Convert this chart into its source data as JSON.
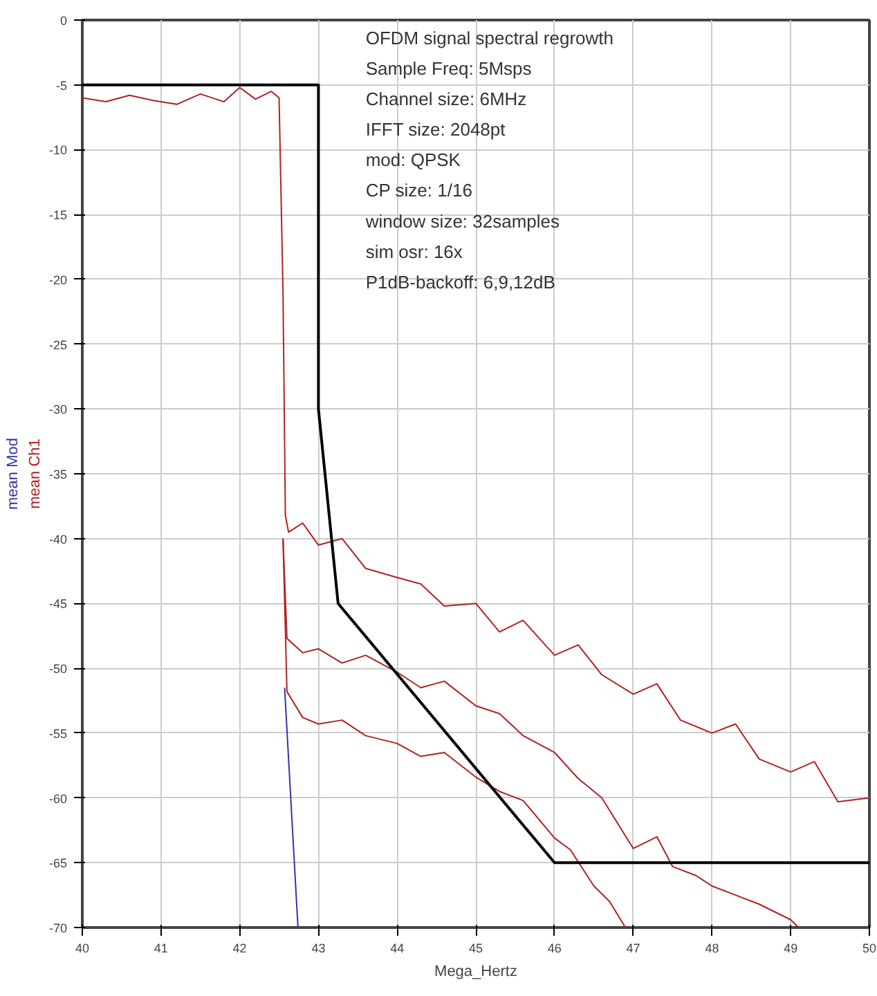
{
  "chart_data": {
    "type": "line",
    "xlabel": "Mega_Hertz",
    "xlim": [
      40,
      50
    ],
    "ylim": [
      -70,
      0
    ],
    "xticks": [
      40,
      41,
      42,
      43,
      44,
      45,
      46,
      47,
      48,
      49,
      50
    ],
    "yticks": [
      0,
      -5,
      -10,
      -15,
      -20,
      -25,
      -30,
      -35,
      -40,
      -45,
      -50,
      -55,
      -60,
      -65,
      -70
    ],
    "grid": true,
    "marker": "none",
    "line_style": "solid",
    "annotations": [
      "OFDM signal spectral regrowth",
      "Sample Freq:   5Msps",
      "Channel size:   6MHz",
      "IFFT  size:          2048pt",
      "mod:                   QPSK",
      "CP size:              1/16",
      "window size:       32samples",
      "sim osr:              16x",
      "P1dB-backoff:     6,9,12dB"
    ],
    "series": [
      {
        "name": "mean Ch1",
        "color": "#b22222",
        "x": [
          40.0,
          40.3,
          40.6,
          40.9,
          41.2,
          41.5,
          41.8,
          42.0,
          42.2,
          42.4,
          42.5,
          42.55,
          42.58,
          42.62,
          42.8,
          43.0,
          43.3,
          43.6,
          44.0,
          44.3,
          44.6,
          45.0,
          45.3,
          45.6,
          46.0,
          46.3,
          46.6,
          47.0,
          47.3,
          47.6,
          48.0,
          48.3,
          48.6,
          49.0,
          49.3,
          49.6,
          50.0
        ],
        "values": [
          -6,
          -6.3,
          -5.8,
          -6.2,
          -6.5,
          -5.7,
          -6.3,
          -5.2,
          -6.1,
          -5.5,
          -6.0,
          -21,
          -38.2,
          -39.5,
          -38.8,
          -40.5,
          -40.0,
          -42.3,
          -43.0,
          -43.5,
          -45.2,
          -45.0,
          -47.2,
          -46.3,
          -49.0,
          -48.2,
          -50.5,
          -52.0,
          -51.2,
          -54.0,
          -55.0,
          -54.3,
          -57.0,
          -58.0,
          -57.2,
          -60.3,
          -60.0
        ]
      },
      {
        "color": "#b22222",
        "x": [
          42.55,
          42.6,
          42.8,
          43.0,
          43.3,
          43.6,
          44.0,
          44.3,
          44.6,
          45.0,
          45.3,
          45.6,
          46.0,
          46.3,
          46.6,
          47.0,
          47.3,
          47.5,
          47.8,
          48.0,
          48.3,
          48.6,
          49.0,
          49.1
        ],
        "values": [
          -40,
          -47.7,
          -48.8,
          -48.5,
          -49.6,
          -49.0,
          -50.3,
          -51.5,
          -51.0,
          -52.9,
          -53.5,
          -55.2,
          -56.5,
          -58.5,
          -60.0,
          -63.9,
          -63.0,
          -65.3,
          -66.0,
          -66.8,
          -67.5,
          -68.2,
          -69.4,
          -70
        ]
      },
      {
        "color": "#b22222",
        "x": [
          42.55,
          42.6,
          42.8,
          43.0,
          43.3,
          43.6,
          44.0,
          44.3,
          44.6,
          45.0,
          45.3,
          45.6,
          46.0,
          46.2,
          46.5,
          46.7,
          46.9
        ],
        "values": [
          -40,
          -51.8,
          -53.8,
          -54.3,
          -54.0,
          -55.2,
          -55.8,
          -56.8,
          -56.5,
          -58.4,
          -59.5,
          -60.2,
          -63.1,
          -64.0,
          -66.8,
          -68.0,
          -70
        ]
      },
      {
        "name": "mean Mod",
        "color": "#3333aa",
        "x": [
          42.57,
          42.74
        ],
        "values": [
          -51.5,
          -70
        ]
      },
      {
        "color": "#000000",
        "x": [
          40,
          43,
          43,
          43.25,
          46,
          50
        ],
        "values": [
          -5,
          -5,
          -30,
          -45,
          -65,
          -65
        ]
      }
    ]
  }
}
